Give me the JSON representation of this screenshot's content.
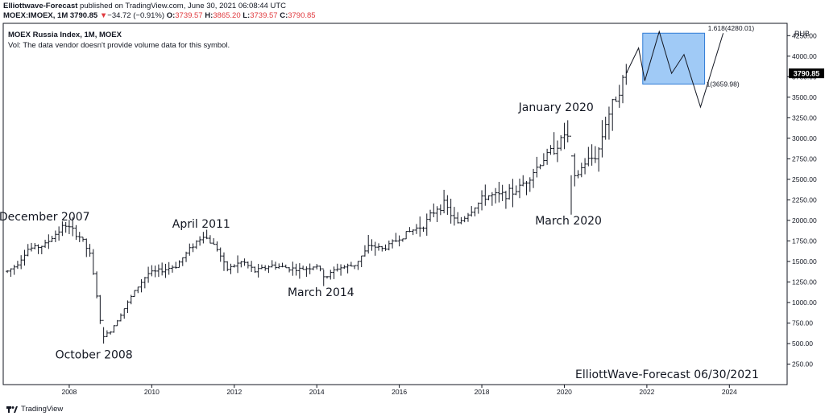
{
  "header": {
    "publisher": "Elliottwave-Forecast",
    "published_text": "published on TradingView.com, June 30, 2021 06:08:44 UTC",
    "symbol": "MOEX:IMOEX, 1M",
    "last": "3790.85",
    "change_arrow": "▼",
    "change": "−34.72 (−0.91%)",
    "o_label": "O:",
    "o_value": "3739.57",
    "h_label": "H:",
    "h_value": "3865.20",
    "l_label": "L:",
    "l_value": "3739.57",
    "c_label": "C:",
    "c_value": "3790.85"
  },
  "chart_data": {
    "type": "ohlc",
    "title": "MOEX Russia Index, 1M, MOEX",
    "subtitle": "Vol: The data vendor doesn't provide volume data for this symbol.",
    "currency": "RUB",
    "last_price_label": "3790.85",
    "ylim": [
      0,
      4400
    ],
    "y_ticks": [
      250,
      500,
      750,
      1000,
      1250,
      1500,
      1750,
      2000,
      2250,
      2500,
      2750,
      3000,
      3250,
      3500,
      3750,
      4000,
      4250
    ],
    "y_tick_labels": [
      "250.00",
      "500.00",
      "750.00",
      "1000.00",
      "1250.00",
      "1500.00",
      "1750.00",
      "2000.00",
      "2250.00",
      "2500.00",
      "2750.00",
      "3000.00",
      "3250.00",
      "3500.00",
      "3750.00",
      "4000.00",
      "4250.00"
    ],
    "x_ticks": [
      2008,
      2010,
      2012,
      2014,
      2016,
      2018,
      2020,
      2022,
      2024
    ],
    "x_tick_labels": [
      "2008",
      "2010",
      "2012",
      "2014",
      "2016",
      "2018",
      "2020",
      "2022",
      "2024"
    ],
    "series_anchors": [
      [
        2006.5,
        1380
      ],
      [
        2006.7,
        1450
      ],
      [
        2007.0,
        1650
      ],
      [
        2007.4,
        1700
      ],
      [
        2007.9,
        1950
      ],
      [
        2008.3,
        1780
      ],
      [
        2008.5,
        1580
      ],
      [
        2008.65,
        1150
      ],
      [
        2008.8,
        580
      ],
      [
        2009.0,
        650
      ],
      [
        2009.3,
        900
      ],
      [
        2009.6,
        1150
      ],
      [
        2009.9,
        1350
      ],
      [
        2010.3,
        1400
      ],
      [
        2010.6,
        1450
      ],
      [
        2011.0,
        1700
      ],
      [
        2011.25,
        1820
      ],
      [
        2011.6,
        1650
      ],
      [
        2011.8,
        1400
      ],
      [
        2012.2,
        1500
      ],
      [
        2012.5,
        1380
      ],
      [
        2012.9,
        1450
      ],
      [
        2013.3,
        1420
      ],
      [
        2013.6,
        1400
      ],
      [
        2014.0,
        1450
      ],
      [
        2014.2,
        1300
      ],
      [
        2014.5,
        1420
      ],
      [
        2014.9,
        1450
      ],
      [
        2015.3,
        1700
      ],
      [
        2015.6,
        1650
      ],
      [
        2015.9,
        1750
      ],
      [
        2016.2,
        1850
      ],
      [
        2016.6,
        1950
      ],
      [
        2016.9,
        2150
      ],
      [
        2017.1,
        2200
      ],
      [
        2017.4,
        1950
      ],
      [
        2017.7,
        2100
      ],
      [
        2018.1,
        2300
      ],
      [
        2018.4,
        2300
      ],
      [
        2018.8,
        2350
      ],
      [
        2019.1,
        2500
      ],
      [
        2019.5,
        2750
      ],
      [
        2019.9,
        2950
      ],
      [
        2020.05,
        3100
      ],
      [
        2020.25,
        2500
      ],
      [
        2020.5,
        2700
      ],
      [
        2020.8,
        2800
      ],
      [
        2021.0,
        3200
      ],
      [
        2021.2,
        3450
      ],
      [
        2021.5,
        3790
      ]
    ],
    "extremes": [
      {
        "x": 2007.9,
        "high": 1980,
        "low": 1850
      },
      {
        "x": 2008.8,
        "high": 700,
        "low": 500
      },
      {
        "x": 2011.25,
        "high": 1860,
        "low": 1720
      },
      {
        "x": 2014.2,
        "high": 1400,
        "low": 1200
      },
      {
        "x": 2020.05,
        "high": 3220,
        "low": 2950
      },
      {
        "x": 2020.2,
        "high": 2550,
        "low": 2070
      }
    ],
    "projection_path": [
      [
        2021.5,
        3790
      ],
      [
        2021.8,
        4100
      ],
      [
        2021.95,
        3700
      ],
      [
        2022.3,
        4300
      ],
      [
        2022.6,
        3790
      ],
      [
        2022.9,
        4020
      ],
      [
        2023.3,
        3380
      ],
      [
        2023.85,
        4280
      ]
    ],
    "target_box": {
      "x0": 2021.9,
      "x1": 2023.4,
      "y_low": 3659.98,
      "y_high": 4280.01
    },
    "fib_levels": [
      {
        "ratio": "1.618",
        "value": 4280.01,
        "label": "1.618(4280.01)"
      },
      {
        "ratio": "1",
        "value": 3659.98,
        "label": "1(3659.98)"
      }
    ],
    "annotations": [
      {
        "text": "December 2007",
        "x": 2007.4,
        "y": 2000
      },
      {
        "text": "October 2008",
        "x": 2008.6,
        "y": 320
      },
      {
        "text": "April 2011",
        "x": 2011.2,
        "y": 1910
      },
      {
        "text": "March 2014",
        "x": 2014.1,
        "y": 1080
      },
      {
        "text": "January 2020",
        "x": 2019.8,
        "y": 3330
      },
      {
        "text": "March 2020",
        "x": 2020.1,
        "y": 1950
      }
    ],
    "watermark": "ElliottWave-Forecast 06/30/2021",
    "colors": {
      "bars": "#131722",
      "box_fill": "#8fc1f5",
      "box_border": "#2f7bd6",
      "last_price_bg": "#000000",
      "axis": "#131722"
    }
  },
  "footer": {
    "brand": "TradingView"
  }
}
